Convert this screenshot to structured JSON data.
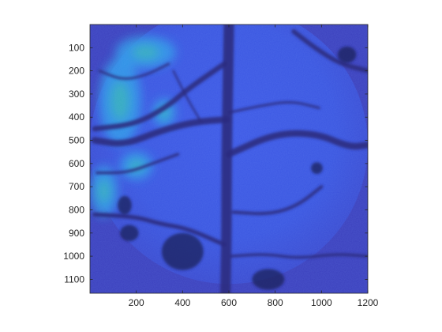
{
  "chart_data": {
    "type": "heatmap",
    "title": "",
    "xlabel": "",
    "ylabel": "",
    "xlim": [
      0,
      1200
    ],
    "ylim": [
      0,
      1160
    ],
    "y_reversed": true,
    "grid": false,
    "colormap": "parula",
    "x_ticks": [
      200,
      400,
      600,
      800,
      1000,
      1200
    ],
    "y_ticks": [
      100,
      200,
      300,
      400,
      500,
      600,
      700,
      800,
      900,
      1000,
      1100
    ],
    "image": {
      "description_colors": {
        "background": "#3b3fbd",
        "field_base": "#3a55e0",
        "bright_area": "#2f9be8",
        "hot_spots": "#34c79c",
        "vessel": "#2b2c7f",
        "dark_blob": "#1e1f5c"
      },
      "circular_field": {
        "cx": 600,
        "cy": 520,
        "r": 600
      },
      "vessels": [
        {
          "points": [
            [
              600,
              0
            ],
            [
              595,
              300
            ],
            [
              590,
              600
            ],
            [
              590,
              900
            ],
            [
              585,
              1160
            ]
          ],
          "width": 45
        },
        {
          "points": [
            [
              20,
              450
            ],
            [
              200,
              430
            ],
            [
              340,
              350
            ],
            [
              420,
              280
            ],
            [
              580,
              170
            ]
          ],
          "width": 22
        },
        {
          "points": [
            [
              20,
              500
            ],
            [
              150,
              520
            ],
            [
              300,
              460
            ],
            [
              450,
              420
            ],
            [
              590,
              410
            ]
          ],
          "width": 28
        },
        {
          "points": [
            [
              20,
              820
            ],
            [
              200,
              830
            ],
            [
              300,
              860
            ],
            [
              420,
              880
            ],
            [
              580,
              950
            ]
          ],
          "width": 18
        },
        {
          "points": [
            [
              600,
              560
            ],
            [
              800,
              470
            ],
            [
              980,
              470
            ],
            [
              1120,
              530
            ],
            [
              1200,
              520
            ]
          ],
          "width": 28
        },
        {
          "points": [
            [
              620,
              810
            ],
            [
              780,
              820
            ],
            [
              900,
              780
            ],
            [
              1000,
              700
            ]
          ],
          "width": 14
        },
        {
          "points": [
            [
              880,
              30
            ],
            [
              970,
              100
            ],
            [
              1080,
              170
            ],
            [
              1200,
              200
            ]
          ],
          "width": 20
        },
        {
          "points": [
            [
              600,
              380
            ],
            [
              740,
              350
            ],
            [
              870,
              330
            ],
            [
              990,
              360
            ]
          ],
          "width": 10
        },
        {
          "points": [
            [
              40,
              200
            ],
            [
              140,
              240
            ],
            [
              240,
              220
            ],
            [
              340,
              170
            ]
          ],
          "width": 10
        },
        {
          "points": [
            [
              30,
              640
            ],
            [
              160,
              640
            ],
            [
              270,
              600
            ],
            [
              380,
              560
            ]
          ],
          "width": 12
        },
        {
          "points": [
            [
              610,
              1000
            ],
            [
              760,
              990
            ],
            [
              900,
              1010
            ],
            [
              1060,
              990
            ],
            [
              1200,
              1000
            ]
          ],
          "width": 12
        },
        {
          "points": [
            [
              360,
              200
            ],
            [
              420,
              320
            ],
            [
              480,
              420
            ]
          ],
          "width": 8
        }
      ],
      "hot_regions": [
        {
          "cx": 130,
          "cy": 330,
          "rx": 90,
          "ry": 190
        },
        {
          "cx": 240,
          "cy": 120,
          "rx": 130,
          "ry": 70
        },
        {
          "cx": 60,
          "cy": 720,
          "rx": 60,
          "ry": 110
        },
        {
          "cx": 200,
          "cy": 610,
          "rx": 70,
          "ry": 60
        },
        {
          "cx": 320,
          "cy": 380,
          "rx": 50,
          "ry": 60
        }
      ],
      "dark_blobs": [
        {
          "cx": 400,
          "cy": 980,
          "rx": 90,
          "ry": 80
        },
        {
          "cx": 150,
          "cy": 780,
          "rx": 30,
          "ry": 40
        },
        {
          "cx": 1110,
          "cy": 130,
          "rx": 40,
          "ry": 35
        },
        {
          "cx": 770,
          "cy": 1100,
          "rx": 70,
          "ry": 45
        },
        {
          "cx": 980,
          "cy": 620,
          "rx": 25,
          "ry": 25
        },
        {
          "cx": 170,
          "cy": 900,
          "rx": 40,
          "ry": 35
        }
      ]
    }
  }
}
